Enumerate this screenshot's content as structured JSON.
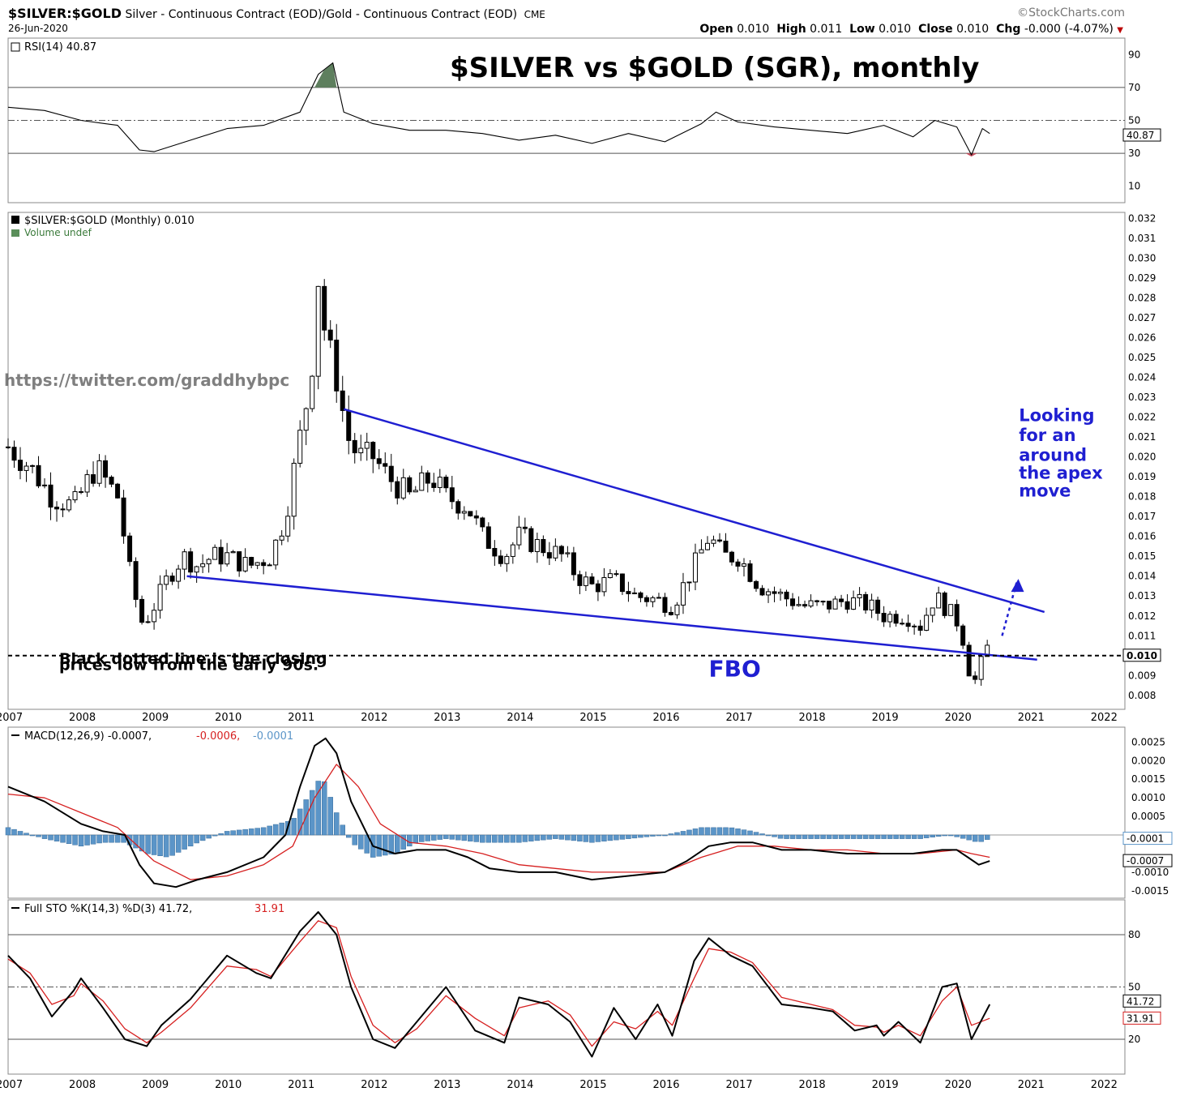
{
  "header": {
    "symbol": "$SILVER:$GOLD",
    "description": "Silver - Continuous Contract (EOD)/Gold - Continuous Contract (EOD)",
    "exchange": "CME",
    "date": "26-Jun-2020",
    "brand": "©StockCharts.com",
    "ohlc": {
      "open_label": "Open",
      "open": "0.010",
      "high_label": "High",
      "high": "0.011",
      "low_label": "Low",
      "low": "0.010",
      "close_label": "Close",
      "close": "0.010",
      "chg_label": "Chg",
      "chg": "-0.000 (-4.07%)"
    }
  },
  "colors": {
    "price_line": "#1f1fd1",
    "macd_hist": "#5b95c8",
    "signal": "#d62020",
    "rsi_fill_high": "#5e7f5e",
    "rsi_fill_low": "#c85060"
  },
  "chart_data": [
    {
      "type": "line",
      "panel": "rsi",
      "title": "$SILVER vs $GOLD (SGR), monthly",
      "legend": "RSI(14) 40.87",
      "last_value_tag": "40.87",
      "ylim": [
        0,
        100
      ],
      "yticks": [
        "90",
        "70",
        "50",
        "30",
        "10"
      ],
      "reference_lines": [
        70,
        50,
        30
      ],
      "series": [
        {
          "name": "RSI(14)",
          "x": [
            2007.0,
            2007.5,
            2008.0,
            2008.5,
            2008.8,
            2009.0,
            2009.5,
            2010.0,
            2010.5,
            2011.0,
            2011.25,
            2011.45,
            2011.6,
            2012.0,
            2012.5,
            2013.0,
            2013.5,
            2014.0,
            2014.5,
            2015.0,
            2015.5,
            2016.0,
            2016.5,
            2016.7,
            2017.0,
            2017.5,
            2018.0,
            2018.5,
            2019.0,
            2019.4,
            2019.7,
            2020.0,
            2020.2,
            2020.35,
            2020.45
          ],
          "values": [
            58,
            56,
            50,
            47,
            32,
            31,
            38,
            45,
            47,
            55,
            78,
            85,
            55,
            48,
            44,
            44,
            42,
            38,
            41,
            36,
            42,
            37,
            48,
            55,
            49,
            46,
            44,
            42,
            47,
            40,
            50,
            46,
            29,
            45,
            42
          ]
        }
      ]
    },
    {
      "type": "candlestick",
      "panel": "price",
      "legend": "$SILVER:$GOLD (Monthly) 0.010",
      "volume_legend": "Volume undef",
      "watermark": "https://twitter.com/graddhybpc",
      "last_value_tag": "0.010",
      "ylim": [
        0.0073,
        0.0323
      ],
      "yticks": [
        "0.032",
        "0.031",
        "0.030",
        "0.029",
        "0.028",
        "0.027",
        "0.026",
        "0.025",
        "0.024",
        "0.023",
        "0.022",
        "0.021",
        "0.020",
        "0.019",
        "0.018",
        "0.017",
        "0.016",
        "0.015",
        "0.014",
        "0.013",
        "0.012",
        "0.011",
        "0.010",
        "0.009",
        "0.008"
      ],
      "xticks": [
        "2007",
        "2008",
        "2009",
        "2010",
        "2011",
        "2012",
        "2013",
        "2014",
        "2015",
        "2016",
        "2017",
        "2018",
        "2019",
        "2020",
        "2021",
        "2022"
      ],
      "close_path": {
        "x": [
          2007.0,
          2007.3,
          2007.6,
          2007.9,
          2008.2,
          2008.5,
          2008.7,
          2008.85,
          2009.0,
          2009.2,
          2009.4,
          2009.6,
          2009.8,
          2010.0,
          2010.3,
          2010.6,
          2010.8,
          2011.0,
          2011.15,
          2011.25,
          2011.35,
          2011.5,
          2011.65,
          2011.8,
          2012.0,
          2012.2,
          2012.5,
          2012.8,
          2013.0,
          2013.3,
          2013.5,
          2013.8,
          2014.0,
          2014.3,
          2014.6,
          2014.8,
          2015.0,
          2015.3,
          2015.6,
          2015.9,
          2016.1,
          2016.4,
          2016.6,
          2016.8,
          2017.0,
          2017.3,
          2017.6,
          2017.9,
          2018.2,
          2018.5,
          2018.8,
          2019.0,
          2019.3,
          2019.5,
          2019.7,
          2019.9,
          2020.05,
          2020.15,
          2020.22,
          2020.3,
          2020.4,
          2020.48
        ],
        "values": [
          0.0205,
          0.0195,
          0.018,
          0.0175,
          0.0195,
          0.018,
          0.0135,
          0.0115,
          0.0125,
          0.014,
          0.015,
          0.0145,
          0.015,
          0.015,
          0.0145,
          0.015,
          0.017,
          0.021,
          0.024,
          0.029,
          0.026,
          0.024,
          0.021,
          0.02,
          0.02,
          0.019,
          0.018,
          0.019,
          0.018,
          0.0175,
          0.016,
          0.015,
          0.016,
          0.0155,
          0.015,
          0.014,
          0.0135,
          0.0138,
          0.013,
          0.0128,
          0.0125,
          0.0145,
          0.016,
          0.015,
          0.015,
          0.0135,
          0.013,
          0.0125,
          0.0125,
          0.0128,
          0.0125,
          0.012,
          0.012,
          0.0115,
          0.013,
          0.0122,
          0.0115,
          0.0095,
          0.0085,
          0.0092,
          0.0105,
          0.01
        ]
      },
      "trendlines": [
        {
          "name": "upper",
          "x": [
            2011.6,
            2021.2
          ],
          "values": [
            0.0224,
            0.0122
          ]
        },
        {
          "name": "lower",
          "x": [
            2009.45,
            2021.1
          ],
          "values": [
            0.014,
            0.0098
          ]
        }
      ],
      "horizontal_line": 0.01,
      "projection_arrow": {
        "x": [
          2020.62,
          2020.82
        ],
        "values": [
          0.011,
          0.0137
        ]
      },
      "annotations": [
        {
          "text": "Black dotted line is the closing",
          "x": 2007.7,
          "value": 0.00958
        },
        {
          "text": "prices low from the early 90s.",
          "x": 2007.7,
          "value": 0.00928
        },
        {
          "text": "FBO",
          "x": 2016.6,
          "value": 0.00895
        },
        {
          "text": "Looking",
          "x": 2020.85,
          "value": 0.0218
        },
        {
          "text": "for an",
          "x": 2020.85,
          "value": 0.0208
        },
        {
          "text": "around",
          "x": 2020.85,
          "value": 0.0198
        },
        {
          "text": "the apex",
          "x": 2020.85,
          "value": 0.0189
        },
        {
          "text": "move",
          "x": 2020.85,
          "value": 0.018
        }
      ]
    },
    {
      "type": "line",
      "panel": "macd",
      "legend": "MACD(12,26,9) -0.0007,",
      "legend_signal": "-0.0006,",
      "legend_hist": "-0.0001",
      "tags": [
        "-0.0001",
        "-0.0007"
      ],
      "ylim": [
        -0.0017,
        0.0029
      ],
      "yticks": [
        "0.0025",
        "0.0020",
        "0.0015",
        "0.0010",
        "0.0005",
        "-0.0010",
        "-0.0015"
      ],
      "series": [
        {
          "name": "MACD",
          "x": [
            2007.0,
            2007.5,
            2008.0,
            2008.3,
            2008.6,
            2008.8,
            2009.0,
            2009.3,
            2009.6,
            2010.0,
            2010.5,
            2010.8,
            2011.0,
            2011.2,
            2011.35,
            2011.5,
            2011.7,
            2012.0,
            2012.3,
            2012.6,
            2013.0,
            2013.3,
            2013.6,
            2014.0,
            2014.5,
            2015.0,
            2015.5,
            2016.0,
            2016.3,
            2016.6,
            2016.9,
            2017.2,
            2017.6,
            2018.0,
            2018.5,
            2019.0,
            2019.4,
            2019.8,
            2020.0,
            2020.15,
            2020.3,
            2020.45
          ],
          "values": [
            0.0013,
            0.0009,
            0.0003,
            0.0001,
            0.0,
            -0.0008,
            -0.0013,
            -0.0014,
            -0.0012,
            -0.001,
            -0.0006,
            0.0,
            0.0013,
            0.0024,
            0.0026,
            0.0022,
            0.0009,
            -0.0003,
            -0.0005,
            -0.0004,
            -0.0004,
            -0.0006,
            -0.0009,
            -0.001,
            -0.001,
            -0.0012,
            -0.0011,
            -0.001,
            -0.0007,
            -0.0003,
            -0.0002,
            -0.0002,
            -0.0004,
            -0.0004,
            -0.0005,
            -0.0005,
            -0.0005,
            -0.0004,
            -0.0004,
            -0.0006,
            -0.0008,
            -0.0007
          ]
        },
        {
          "name": "Signal",
          "x": [
            2007.0,
            2007.5,
            2008.0,
            2008.5,
            2009.0,
            2009.5,
            2010.0,
            2010.5,
            2010.9,
            2011.2,
            2011.5,
            2011.8,
            2012.1,
            2012.5,
            2013.0,
            2013.5,
            2014.0,
            2014.5,
            2015.0,
            2015.5,
            2016.0,
            2016.5,
            2017.0,
            2017.5,
            2018.0,
            2018.5,
            2019.0,
            2019.5,
            2020.0,
            2020.2,
            2020.45
          ],
          "values": [
            0.0011,
            0.001,
            0.0006,
            0.0002,
            -0.0007,
            -0.0012,
            -0.0011,
            -0.0008,
            -0.0003,
            0.001,
            0.0019,
            0.0013,
            0.0003,
            -0.0002,
            -0.0003,
            -0.0005,
            -0.0008,
            -0.0009,
            -0.001,
            -0.001,
            -0.001,
            -0.0006,
            -0.0003,
            -0.0003,
            -0.0004,
            -0.0004,
            -0.0005,
            -0.0005,
            -0.0004,
            -0.0005,
            -0.0006
          ]
        },
        {
          "name": "Histogram",
          "x": [
            2007.0,
            2007.5,
            2008.0,
            2008.3,
            2008.6,
            2008.9,
            2009.2,
            2009.6,
            2010.0,
            2010.5,
            2010.9,
            2011.1,
            2011.3,
            2011.5,
            2011.7,
            2012.0,
            2012.3,
            2012.6,
            2013.0,
            2013.5,
            2014.0,
            2014.5,
            2015.0,
            2015.5,
            2016.0,
            2016.5,
            2016.9,
            2017.2,
            2017.6,
            2018.0,
            2018.5,
            2019.0,
            2019.5,
            2019.9,
            2020.1,
            2020.3,
            2020.45
          ],
          "values": [
            0.0002,
            -0.0001,
            -0.0003,
            -0.0002,
            -0.0002,
            -0.0005,
            -0.0006,
            -0.0002,
            0.0001,
            0.0002,
            0.0004,
            0.001,
            0.0016,
            0.0006,
            -0.0002,
            -0.0006,
            -0.0005,
            -0.0002,
            -0.0001,
            -0.0002,
            -0.0002,
            -0.0001,
            -0.0002,
            -0.0001,
            0.0,
            0.0002,
            0.0002,
            0.0001,
            -0.0001,
            -0.0001,
            -0.0001,
            -0.0001,
            -0.0001,
            0.0,
            -0.0001,
            -0.0002,
            -0.0001
          ]
        }
      ]
    },
    {
      "type": "line",
      "panel": "stochastic",
      "legend": "Full STO %K(14,3) %D(3) 41.72,",
      "legend_d": "31.91",
      "tags": [
        "41.72",
        "31.91"
      ],
      "ylim": [
        0,
        100
      ],
      "yticks": [
        "80",
        "50",
        "20"
      ],
      "reference_lines": [
        80,
        50,
        20
      ],
      "xticks": [
        "2007",
        "2008",
        "2009",
        "2010",
        "2011",
        "2012",
        "2013",
        "2014",
        "2015",
        "2016",
        "2017",
        "2018",
        "2019",
        "2020",
        "2021",
        "2022"
      ],
      "series": [
        {
          "name": "%K",
          "x": [
            2007.0,
            2007.3,
            2007.6,
            2007.9,
            2008.0,
            2008.3,
            2008.6,
            2008.9,
            2009.1,
            2009.5,
            2010.0,
            2010.4,
            2010.6,
            2011.0,
            2011.25,
            2011.5,
            2011.7,
            2012.0,
            2012.3,
            2012.6,
            2013.0,
            2013.4,
            2013.8,
            2014.0,
            2014.4,
            2014.7,
            2015.0,
            2015.3,
            2015.6,
            2015.9,
            2016.1,
            2016.4,
            2016.6,
            2016.9,
            2017.2,
            2017.6,
            2018.0,
            2018.3,
            2018.6,
            2018.9,
            2019.0,
            2019.2,
            2019.5,
            2019.8,
            2020.0,
            2020.2,
            2020.45
          ],
          "values": [
            68,
            55,
            33,
            48,
            55,
            38,
            20,
            16,
            28,
            43,
            68,
            58,
            55,
            82,
            93,
            80,
            50,
            20,
            15,
            30,
            50,
            25,
            18,
            44,
            40,
            30,
            10,
            38,
            20,
            40,
            22,
            65,
            78,
            68,
            62,
            40,
            38,
            36,
            25,
            28,
            22,
            30,
            18,
            50,
            52,
            20,
            40
          ]
        },
        {
          "name": "%D",
          "x": [
            2007.0,
            2007.3,
            2007.6,
            2007.9,
            2008.0,
            2008.3,
            2008.6,
            2008.9,
            2009.1,
            2009.5,
            2010.0,
            2010.4,
            2010.6,
            2011.0,
            2011.25,
            2011.5,
            2011.7,
            2012.0,
            2012.3,
            2012.6,
            2013.0,
            2013.4,
            2013.8,
            2014.0,
            2014.4,
            2014.7,
            2015.0,
            2015.3,
            2015.6,
            2015.9,
            2016.1,
            2016.4,
            2016.6,
            2016.9,
            2017.2,
            2017.6,
            2018.0,
            2018.3,
            2018.6,
            2018.9,
            2019.0,
            2019.2,
            2019.5,
            2019.8,
            2020.0,
            2020.2,
            2020.45
          ],
          "values": [
            66,
            58,
            40,
            45,
            52,
            42,
            26,
            18,
            24,
            38,
            62,
            60,
            56,
            76,
            88,
            84,
            56,
            28,
            18,
            26,
            45,
            32,
            22,
            38,
            42,
            34,
            16,
            30,
            26,
            36,
            28,
            55,
            72,
            70,
            64,
            44,
            40,
            37,
            28,
            27,
            24,
            28,
            22,
            42,
            50,
            28,
            32
          ]
        }
      ]
    }
  ]
}
